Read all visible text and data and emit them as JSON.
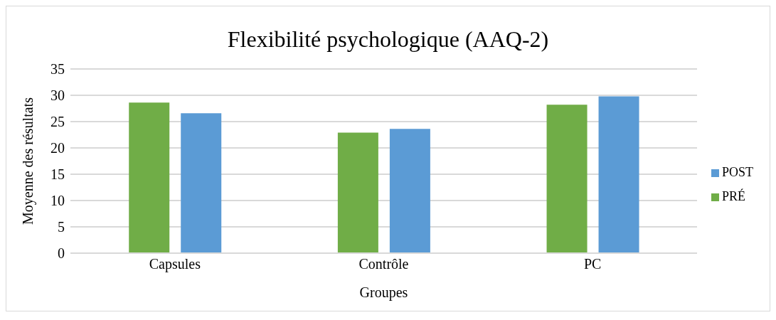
{
  "chart_data": {
    "type": "bar",
    "title": "Flexibilité psychologique (AAQ-2)",
    "xlabel": "Groupes",
    "ylabel": "Moyenne des résultats",
    "categories": [
      "Capsules",
      "Contrôle",
      "PC"
    ],
    "series": [
      {
        "name": "PRÉ",
        "color": "#70ad47",
        "values": [
          28.6,
          22.9,
          28.2
        ]
      },
      {
        "name": "POST",
        "color": "#5b9bd5",
        "values": [
          26.6,
          23.6,
          29.8
        ]
      }
    ],
    "ylim": [
      0,
      35
    ],
    "yticks": [
      0,
      5,
      10,
      15,
      20,
      25,
      30,
      35
    ],
    "grid": "y",
    "legend": "right"
  }
}
